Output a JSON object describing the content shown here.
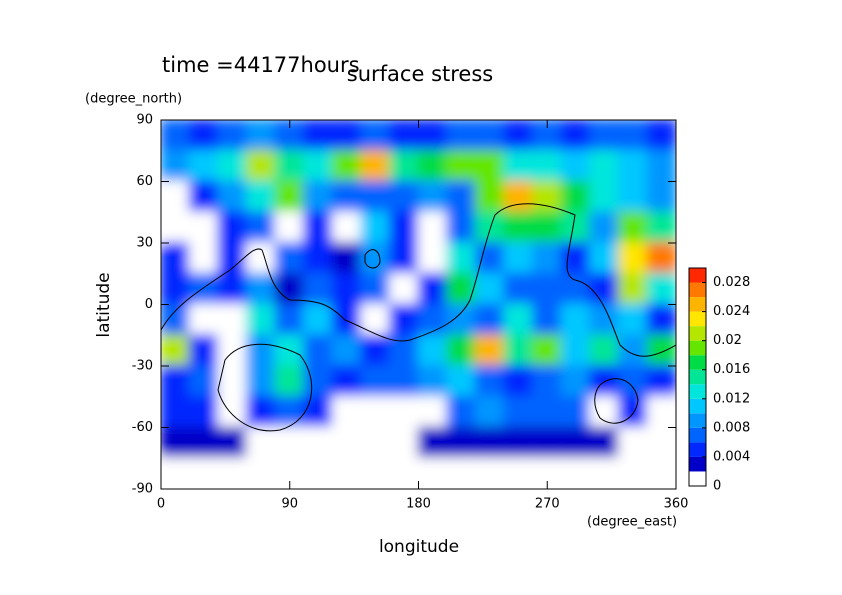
{
  "chart_data": {
    "type": "contour",
    "title": "surface stress",
    "subtitle": "time =44177hours",
    "x_label": "longitude",
    "x_unit": "(degree_east)",
    "y_label": "latitude",
    "y_unit": "(degree_north)",
    "xlim": [
      0,
      360
    ],
    "xticks": [
      0,
      90,
      180,
      270,
      360
    ],
    "ylim": [
      -90,
      90
    ],
    "yticks": [
      -90,
      -60,
      -30,
      0,
      30,
      60,
      90
    ],
    "x": [
      10,
      30,
      50,
      70,
      90,
      110,
      130,
      150,
      170,
      190,
      210,
      230,
      250,
      270,
      290,
      310,
      330,
      350
    ],
    "y": [
      82.5,
      67.5,
      52.5,
      37.5,
      22.5,
      7.5,
      -7.5,
      -22.5,
      -37.5,
      -52.5,
      -67.5,
      -82.5
    ],
    "z": [
      [
        0.006,
        0.004,
        0.006,
        0.008,
        0.006,
        0.004,
        0.004,
        0.006,
        0.004,
        0.004,
        0.006,
        0.006,
        0.004,
        0.006,
        0.004,
        0.006,
        0.006,
        0.004
      ],
      [
        0.008,
        0.01,
        0.012,
        0.02,
        0.014,
        0.012,
        0.018,
        0.024,
        0.014,
        0.016,
        0.018,
        0.018,
        0.012,
        0.012,
        0.01,
        0.012,
        0.01,
        0.008
      ],
      [
        0.001,
        0.004,
        0.008,
        0.012,
        0.018,
        0.008,
        0.006,
        0.006,
        0.006,
        0.008,
        0.006,
        0.018,
        0.024,
        0.02,
        0.016,
        0.012,
        0.01,
        0.008
      ],
      [
        0.001,
        0.001,
        0.004,
        0.006,
        0.001,
        0.004,
        0.001,
        0.01,
        0.004,
        0.001,
        0.006,
        0.014,
        0.016,
        0.016,
        0.014,
        0.008,
        0.018,
        0.014
      ],
      [
        0.004,
        0.001,
        0.004,
        0.001,
        0.006,
        0.004,
        0.002,
        0.008,
        0.004,
        0.001,
        0.012,
        0.006,
        0.01,
        0.008,
        0.004,
        0.01,
        0.022,
        0.026
      ],
      [
        0.004,
        0.006,
        0.004,
        0.008,
        0.003,
        0.006,
        0.004,
        0.006,
        0.001,
        0.004,
        0.016,
        0.01,
        0.006,
        0.006,
        0.006,
        0.004,
        0.02,
        0.012
      ],
      [
        0.006,
        0.001,
        0.001,
        0.012,
        0.006,
        0.01,
        0.004,
        0.001,
        0.004,
        0.006,
        0.008,
        0.006,
        0.012,
        0.006,
        0.01,
        0.008,
        0.01,
        0.004
      ],
      [
        0.02,
        0.004,
        0.001,
        0.008,
        0.012,
        0.006,
        0.008,
        0.004,
        0.006,
        0.01,
        0.016,
        0.024,
        0.014,
        0.018,
        0.01,
        0.014,
        0.008,
        0.016
      ],
      [
        0.004,
        0.006,
        0.001,
        0.008,
        0.014,
        0.006,
        0.004,
        0.006,
        0.006,
        0.008,
        0.01,
        0.006,
        0.004,
        0.006,
        0.008,
        0.004,
        0.006,
        0.004
      ],
      [
        0.004,
        0.004,
        0.001,
        0.004,
        0.006,
        0.004,
        0.001,
        0.001,
        0.001,
        0.001,
        0.006,
        0.008,
        0.006,
        0.006,
        0.006,
        0.001,
        0.004,
        0.001
      ],
      [
        0.003,
        0.003,
        0.003,
        0.001,
        0.001,
        0.001,
        0.001,
        0.001,
        0.001,
        0.003,
        0.003,
        0.003,
        0.003,
        0.003,
        0.003,
        0.003,
        0.001,
        0.001
      ],
      [
        0.001,
        0.001,
        0.001,
        0.001,
        0.001,
        0.001,
        0.001,
        0.001,
        0.001,
        0.001,
        0.001,
        0.001,
        0.001,
        0.001,
        0.001,
        0.001,
        0.001,
        0.001
      ]
    ],
    "levels": [
      0,
      0.002,
      0.004,
      0.006,
      0.008,
      0.01,
      0.012,
      0.014,
      0.016,
      0.018,
      0.02,
      0.022,
      0.024,
      0.026,
      0.028,
      0.03
    ],
    "colors": [
      "#ffffff",
      "#0000c8",
      "#0028ff",
      "#0064ff",
      "#0096ff",
      "#00c8ff",
      "#00e6dc",
      "#00e696",
      "#00dc46",
      "#64e600",
      "#b4e600",
      "#ffe600",
      "#ffb400",
      "#ff7800",
      "#ff2800"
    ],
    "colorbar_ticks": [
      0,
      0.004,
      0.008,
      0.012,
      0.016,
      0.02,
      0.024,
      0.028
    ]
  }
}
